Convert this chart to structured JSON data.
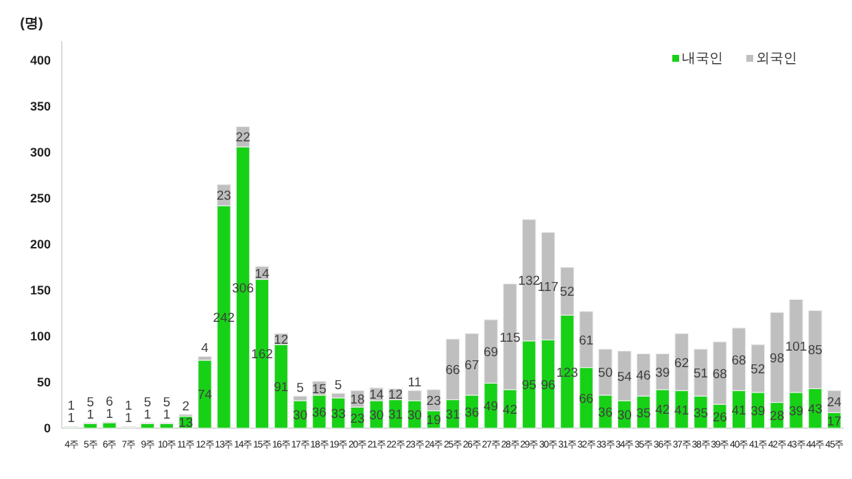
{
  "chart_data": {
    "type": "bar",
    "stacked": true,
    "ylabel": "(명)",
    "legend": "top right",
    "data_labels": true,
    "grid": false,
    "categories": [
      "4주",
      "5주",
      "6주",
      "7주",
      "9주",
      "10주",
      "11주",
      "12주",
      "13주",
      "14주",
      "15주",
      "16주",
      "17주",
      "18주",
      "19주",
      "20주",
      "21주",
      "22주",
      "23주",
      "24주",
      "25주",
      "26주",
      "27주",
      "28주",
      "29주",
      "30주",
      "31주",
      "32주",
      "33주",
      "34주",
      "35주",
      "36주",
      "37주",
      "38주",
      "39주",
      "40주",
      "41주",
      "42주",
      "43주",
      "44주",
      "45주"
    ],
    "ylim": [
      0,
      400
    ],
    "yticks": [
      0,
      50,
      100,
      150,
      200,
      250,
      300,
      350,
      400
    ],
    "series": [
      {
        "name": "내국인",
        "color": "#17d117",
        "values": [
          1,
          5,
          6,
          1,
          5,
          5,
          13,
          74,
          242,
          306,
          162,
          91,
          30,
          36,
          33,
          23,
          30,
          31,
          30,
          19,
          31,
          36,
          49,
          42,
          95,
          96,
          123,
          66,
          36,
          30,
          35,
          42,
          41,
          35,
          26,
          41,
          39,
          28,
          39,
          43,
          17
        ]
      },
      {
        "name": "외국인",
        "color": "#bfbfbf",
        "values": [
          1,
          1,
          1,
          1,
          1,
          1,
          2,
          4,
          23,
          22,
          14,
          12,
          5,
          15,
          5,
          18,
          14,
          12,
          11,
          23,
          66,
          67,
          69,
          115,
          132,
          117,
          52,
          61,
          50,
          54,
          46,
          39,
          62,
          51,
          68,
          68,
          52,
          98,
          101,
          85,
          24
        ]
      }
    ]
  }
}
